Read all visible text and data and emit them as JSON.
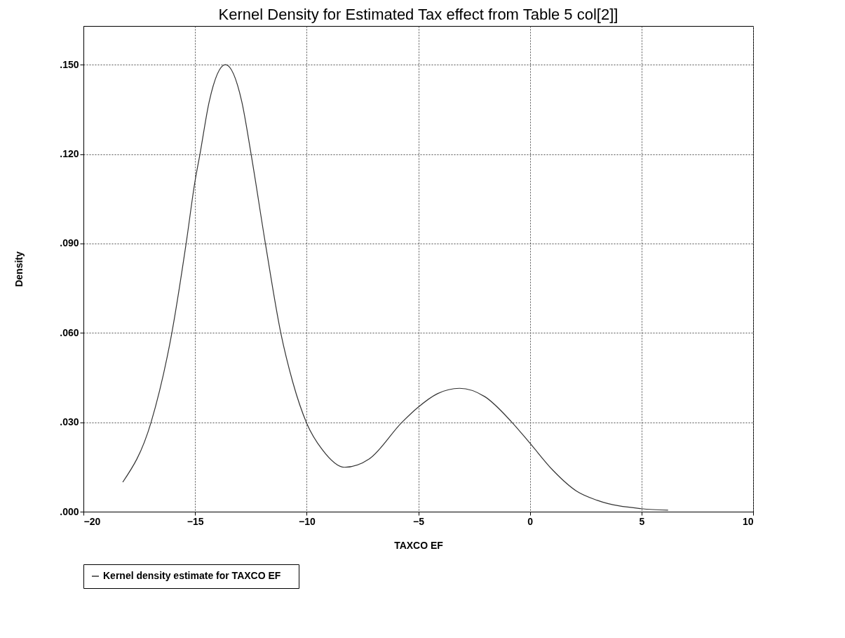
{
  "chart_data": {
    "type": "line",
    "title": "Kernel Density for Estimated Tax effect from Table 5 col[2]]",
    "xlabel": "TAXCO EF",
    "ylabel": "Density",
    "x": [
      -18.24,
      -16.97,
      -16.04,
      -15.4,
      -15.0,
      -14.78,
      -14.37,
      -13.64,
      -12.91,
      -12.49,
      -11.85,
      -11.16,
      -10.62,
      -10.0,
      -9.3,
      -8.31,
      -7.18,
      -5.73,
      -5.0,
      -4.14,
      -3.15,
      -2.02,
      -0.83,
      0,
      1.03,
      2.09,
      3.02,
      5.0,
      6.19
    ],
    "series": [
      {
        "name": "Kernel density estimate for     TAXCO EF",
        "color": "#333333",
        "values": [
          0.0099,
          0.03,
          0.06,
          0.09,
          0.111,
          0.12,
          0.1375,
          0.15,
          0.1377,
          0.12,
          0.09,
          0.06,
          0.0434,
          0.0297,
          0.0208,
          0.0149,
          0.0178,
          0.03,
          0.0351,
          0.0396,
          0.0414,
          0.0386,
          0.0302,
          0.023,
          0.0139,
          0.0069,
          0.0038,
          0.001,
          0.0005
        ]
      }
    ],
    "xlim": [
      -20,
      10
    ],
    "xticks": [
      -20,
      -15,
      -10,
      -5,
      0,
      5,
      10
    ],
    "ylim": [
      0,
      0.163
    ],
    "yticks": [
      {
        "value": 0,
        "label": ".000"
      },
      {
        "value": 0.03,
        "label": ".030"
      },
      {
        "value": 0.06,
        "label": ".060"
      },
      {
        "value": 0.09,
        "label": ".090"
      },
      {
        "value": 0.12,
        "label": ".120"
      },
      {
        "value": 0.15,
        "label": ".150"
      }
    ],
    "grid": true,
    "legend": "bottom",
    "marker": "none",
    "line_style": "solid"
  }
}
